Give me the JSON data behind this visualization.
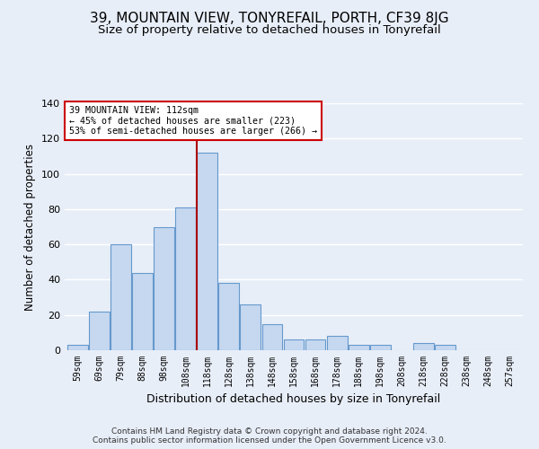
{
  "title": "39, MOUNTAIN VIEW, TONYREFAIL, PORTH, CF39 8JG",
  "subtitle": "Size of property relative to detached houses in Tonyrefail",
  "xlabel": "Distribution of detached houses by size in Tonyrefail",
  "ylabel": "Number of detached properties",
  "footer_line1": "Contains HM Land Registry data © Crown copyright and database right 2024.",
  "footer_line2": "Contains public sector information licensed under the Open Government Licence v3.0.",
  "bar_labels": [
    "59sqm",
    "69sqm",
    "79sqm",
    "88sqm",
    "98sqm",
    "108sqm",
    "118sqm",
    "128sqm",
    "138sqm",
    "148sqm",
    "158sqm",
    "168sqm",
    "178sqm",
    "188sqm",
    "198sqm",
    "208sqm",
    "218sqm",
    "228sqm",
    "238sqm",
    "248sqm",
    "257sqm"
  ],
  "bar_values": [
    3,
    22,
    60,
    44,
    70,
    81,
    112,
    38,
    26,
    15,
    6,
    6,
    8,
    3,
    3,
    0,
    4,
    3,
    0,
    0,
    0
  ],
  "bar_color": "#c5d8f0",
  "bar_edge_color": "#6699cc",
  "property_label": "39 MOUNTAIN VIEW: 112sqm",
  "annotation_line1": "← 45% of detached houses are smaller (223)",
  "annotation_line2": "53% of semi-detached houses are larger (266) →",
  "vline_color": "#aa0000",
  "vline_x_index": 5.5,
  "annotation_box_color": "#ffffff",
  "annotation_box_edge": "#cc0000",
  "ylim": [
    0,
    140
  ],
  "yticks": [
    0,
    20,
    40,
    60,
    80,
    100,
    120,
    140
  ],
  "background_color": "#e8eef8",
  "plot_background": "#e8eef8",
  "grid_color": "#ffffff",
  "title_fontsize": 11,
  "subtitle_fontsize": 9.5
}
